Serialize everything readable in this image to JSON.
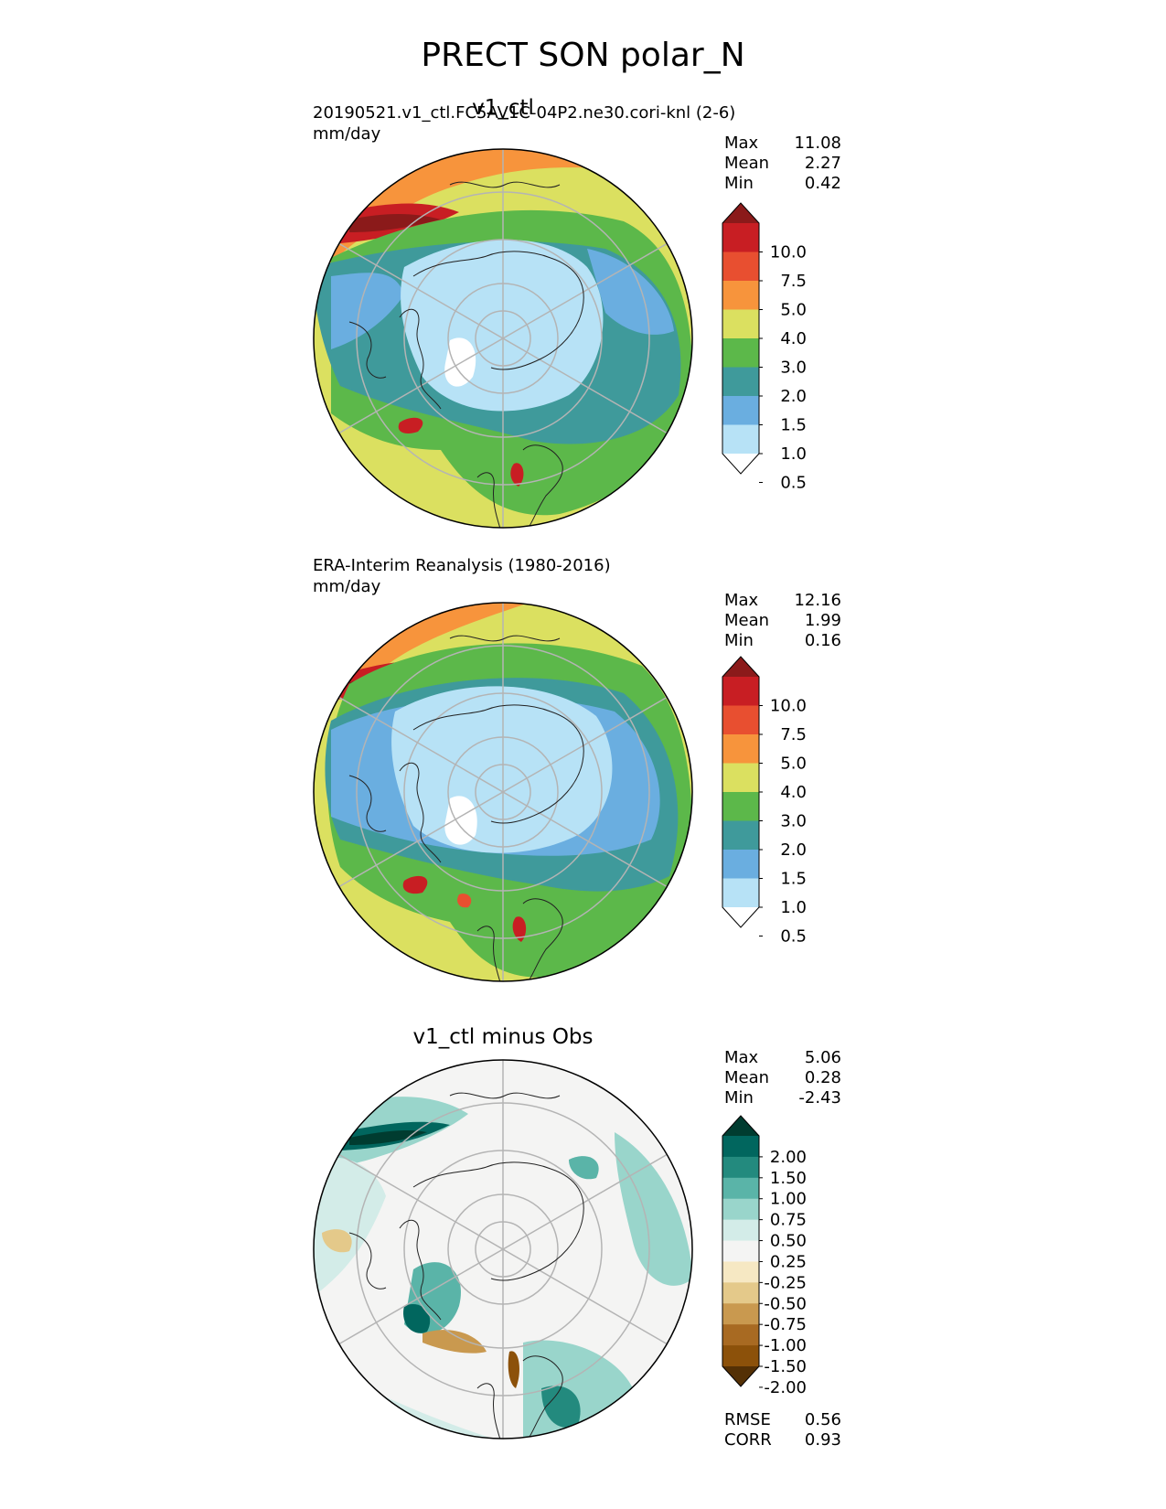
{
  "figure": {
    "title": "PRECT SON polar_N"
  },
  "panels": [
    {
      "title": "v1_ctl",
      "run_label": "20190521.v1_ctl.FC5AV1C-04P2.ne30.cori-knl (2-6)",
      "units": "mm/day",
      "stats": [
        {
          "label": "Max",
          "value": "11.08"
        },
        {
          "label": "Mean",
          "value": "2.27"
        },
        {
          "label": "Min",
          "value": "0.42"
        }
      ],
      "colorbar": {
        "ticks": [
          "10.0",
          "7.5",
          "5.0",
          "4.0",
          "3.0",
          "2.0",
          "1.5",
          "1.0",
          "0.5"
        ],
        "colors": [
          "#8b1a1a",
          "#c81e23",
          "#e84f30",
          "#f7943c",
          "#dbe060",
          "#5cb84a",
          "#3f9a9b",
          "#6aaee0",
          "#b7e2f6",
          "#ffffff"
        ]
      }
    },
    {
      "title": "",
      "run_label": "ERA-Interim Reanalysis (1980-2016)",
      "units": "mm/day",
      "stats": [
        {
          "label": "Max",
          "value": "12.16"
        },
        {
          "label": "Mean",
          "value": "1.99"
        },
        {
          "label": "Min",
          "value": "0.16"
        }
      ],
      "colorbar": {
        "ticks": [
          "10.0",
          "7.5",
          "5.0",
          "4.0",
          "3.0",
          "2.0",
          "1.5",
          "1.0",
          "0.5"
        ],
        "colors": [
          "#8b1a1a",
          "#c81e23",
          "#e84f30",
          "#f7943c",
          "#dbe060",
          "#5cb84a",
          "#3f9a9b",
          "#6aaee0",
          "#b7e2f6",
          "#ffffff"
        ]
      }
    },
    {
      "title": "v1_ctl minus Obs",
      "stats": [
        {
          "label": "Max",
          "value": "5.06"
        },
        {
          "label": "Mean",
          "value": "0.28"
        },
        {
          "label": "Min",
          "value": "-2.43"
        }
      ],
      "metrics": [
        {
          "label": "RMSE",
          "value": "0.56"
        },
        {
          "label": "CORR",
          "value": "0.93"
        }
      ],
      "colorbar": {
        "ticks": [
          "2.00",
          "1.50",
          "1.00",
          "0.75",
          "0.50",
          "0.25",
          "-0.25",
          "-0.50",
          "-0.75",
          "-1.00",
          "-1.50",
          "-2.00"
        ],
        "colors": [
          "#003c30",
          "#01665e",
          "#238a7e",
          "#5ab4a8",
          "#99d5cb",
          "#d3ece8",
          "#f4f4f3",
          "#f6e8c3",
          "#e4c98a",
          "#c9994f",
          "#a86a22",
          "#8c510a",
          "#543005"
        ]
      }
    }
  ]
}
